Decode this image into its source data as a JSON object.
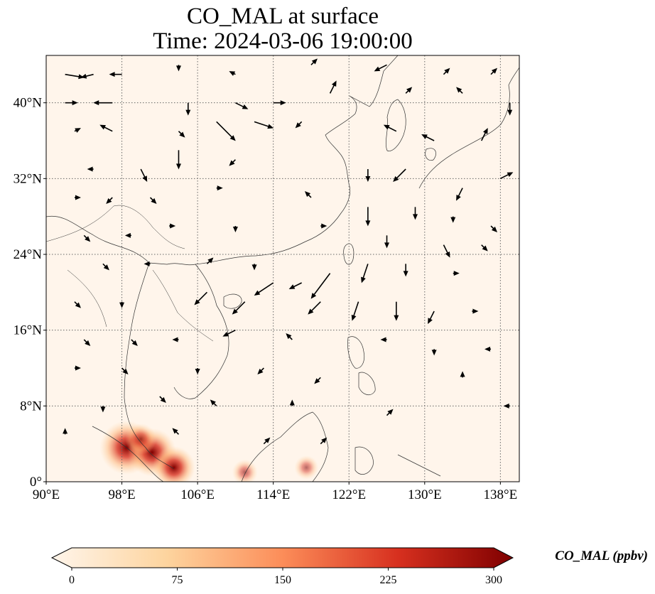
{
  "title_line1": "CO_MAL at surface",
  "title_line2": "Time: 2024-03-06 19:00:00",
  "map": {
    "lon_range": [
      90,
      140
    ],
    "lat_range": [
      0,
      45
    ],
    "lon_ticks": [
      {
        "value": 90,
        "label": "90°E"
      },
      {
        "value": 98,
        "label": "98°E"
      },
      {
        "value": 106,
        "label": "106°E"
      },
      {
        "value": 114,
        "label": "114°E"
      },
      {
        "value": 122,
        "label": "122°E"
      },
      {
        "value": 130,
        "label": "130°E"
      },
      {
        "value": 138,
        "label": "138°E"
      }
    ],
    "lat_ticks": [
      {
        "value": 0,
        "label": "0°"
      },
      {
        "value": 8,
        "label": "8°N"
      },
      {
        "value": 16,
        "label": "16°N"
      },
      {
        "value": 24,
        "label": "24°N"
      },
      {
        "value": 32,
        "label": "32°N"
      },
      {
        "value": 40,
        "label": "40°N"
      }
    ],
    "gridlines": "dotted",
    "background_color": "#fff5eb"
  },
  "colorbar": {
    "label": "CO_MAL (ppbv)",
    "min": 0,
    "max": 300,
    "extend": "both",
    "colormap": "OrRd",
    "colors": [
      "#fff5eb",
      "#fdd49e",
      "#fc8d59",
      "#d7301f",
      "#7f0000"
    ],
    "ticks": [
      {
        "value": 0,
        "label": "0"
      },
      {
        "value": 75,
        "label": "75"
      },
      {
        "value": 150,
        "label": "150"
      },
      {
        "value": 225,
        "label": "225"
      },
      {
        "value": 300,
        "label": "300"
      }
    ]
  },
  "hotspots": [
    {
      "lon": 98.5,
      "lat": 3.6,
      "value": 280
    },
    {
      "lon": 101.2,
      "lat": 3.1,
      "value": 240
    },
    {
      "lon": 103.5,
      "lat": 1.5,
      "value": 200
    },
    {
      "lon": 100.0,
      "lat": 4.5,
      "value": 120
    },
    {
      "lon": 111.0,
      "lat": 1.0,
      "value": 80
    },
    {
      "lon": 117.5,
      "lat": 1.5,
      "value": 70
    }
  ],
  "wind_vectors": [
    {
      "lon": 92,
      "lat": 43,
      "u": 3,
      "v": -0.5
    },
    {
      "lon": 95,
      "lat": 43,
      "u": -2,
      "v": -0.5
    },
    {
      "lon": 98,
      "lat": 43,
      "u": -2,
      "v": 0
    },
    {
      "lon": 104,
      "lat": 44,
      "u": 0,
      "v": -1
    },
    {
      "lon": 110,
      "lat": 43,
      "u": -1,
      "v": 0.5
    },
    {
      "lon": 118,
      "lat": 44,
      "u": 1,
      "v": 1
    },
    {
      "lon": 126,
      "lat": 44,
      "u": -2,
      "v": -1
    },
    {
      "lon": 132,
      "lat": 43,
      "u": 1,
      "v": 1
    },
    {
      "lon": 137,
      "lat": 43,
      "u": 1,
      "v": 1
    },
    {
      "lon": 92,
      "lat": 40,
      "u": 2,
      "v": 0
    },
    {
      "lon": 97,
      "lat": 40,
      "u": -3,
      "v": 0
    },
    {
      "lon": 105,
      "lat": 40,
      "u": 0,
      "v": -2
    },
    {
      "lon": 110,
      "lat": 40,
      "u": 2,
      "v": -1
    },
    {
      "lon": 114,
      "lat": 40,
      "u": 2,
      "v": 0
    },
    {
      "lon": 120,
      "lat": 41,
      "u": 1,
      "v": 2
    },
    {
      "lon": 128,
      "lat": 41,
      "u": 1,
      "v": 1
    },
    {
      "lon": 134,
      "lat": 41,
      "u": -1,
      "v": 1
    },
    {
      "lon": 139,
      "lat": 40,
      "u": 0,
      "v": -2
    },
    {
      "lon": 93,
      "lat": 37,
      "u": 1,
      "v": 0.5
    },
    {
      "lon": 97,
      "lat": 37,
      "u": -2,
      "v": 1
    },
    {
      "lon": 104,
      "lat": 37,
      "u": 1,
      "v": -1
    },
    {
      "lon": 108,
      "lat": 38,
      "u": 3,
      "v": -3
    },
    {
      "lon": 112,
      "lat": 38,
      "u": 3,
      "v": -1
    },
    {
      "lon": 117,
      "lat": 38,
      "u": -1,
      "v": -1
    },
    {
      "lon": 127,
      "lat": 37,
      "u": -2,
      "v": 1
    },
    {
      "lon": 131,
      "lat": 36,
      "u": -2,
      "v": 1
    },
    {
      "lon": 136,
      "lat": 36,
      "u": 1,
      "v": 2
    },
    {
      "lon": 95,
      "lat": 33,
      "u": -1,
      "v": 0
    },
    {
      "lon": 100,
      "lat": 33,
      "u": 1,
      "v": -2
    },
    {
      "lon": 104,
      "lat": 35,
      "u": 0,
      "v": -3
    },
    {
      "lon": 110,
      "lat": 34,
      "u": -1,
      "v": -1
    },
    {
      "lon": 124,
      "lat": 33,
      "u": 0,
      "v": -2
    },
    {
      "lon": 128,
      "lat": 33,
      "u": -2,
      "v": -2
    },
    {
      "lon": 134,
      "lat": 31,
      "u": -1,
      "v": -2
    },
    {
      "lon": 138,
      "lat": 32,
      "u": 2,
      "v": 1
    },
    {
      "lon": 93,
      "lat": 30,
      "u": 1,
      "v": 0
    },
    {
      "lon": 97,
      "lat": 30,
      "u": -1,
      "v": -1
    },
    {
      "lon": 101,
      "lat": 30,
      "u": 1,
      "v": -1
    },
    {
      "lon": 108,
      "lat": 31,
      "u": 1,
      "v": 0
    },
    {
      "lon": 118,
      "lat": 30,
      "u": -1,
      "v": 1
    },
    {
      "lon": 124,
      "lat": 29,
      "u": 0,
      "v": -3
    },
    {
      "lon": 129,
      "lat": 29,
      "u": 0,
      "v": -2
    },
    {
      "lon": 133,
      "lat": 28,
      "u": 0,
      "v": -1
    },
    {
      "lon": 137,
      "lat": 27,
      "u": 1,
      "v": -1
    },
    {
      "lon": 94,
      "lat": 26,
      "u": 1,
      "v": -1
    },
    {
      "lon": 99,
      "lat": 26,
      "u": -1,
      "v": 0
    },
    {
      "lon": 103,
      "lat": 27,
      "u": 1,
      "v": 0
    },
    {
      "lon": 110,
      "lat": 27,
      "u": 0,
      "v": -1
    },
    {
      "lon": 119,
      "lat": 27,
      "u": 1,
      "v": 0
    },
    {
      "lon": 126,
      "lat": 26,
      "u": 0,
      "v": -2
    },
    {
      "lon": 132,
      "lat": 25,
      "u": 1,
      "v": -2
    },
    {
      "lon": 136,
      "lat": 25,
      "u": 1,
      "v": -1
    },
    {
      "lon": 96,
      "lat": 23,
      "u": 1,
      "v": -1
    },
    {
      "lon": 101,
      "lat": 23,
      "u": -1,
      "v": 0
    },
    {
      "lon": 107,
      "lat": 23,
      "u": 1,
      "v": 1
    },
    {
      "lon": 112,
      "lat": 23,
      "u": 0,
      "v": -1
    },
    {
      "lon": 117,
      "lat": 21,
      "u": -2,
      "v": -1
    },
    {
      "lon": 120,
      "lat": 22,
      "u": -3,
      "v": -4
    },
    {
      "lon": 124,
      "lat": 23,
      "u": -1,
      "v": -3
    },
    {
      "lon": 128,
      "lat": 23,
      "u": 0,
      "v": -2
    },
    {
      "lon": 133,
      "lat": 22,
      "u": 1,
      "v": 0
    },
    {
      "lon": 93,
      "lat": 19,
      "u": 1,
      "v": -1
    },
    {
      "lon": 98,
      "lat": 19,
      "u": 0,
      "v": -1
    },
    {
      "lon": 107,
      "lat": 20,
      "u": -2,
      "v": -2
    },
    {
      "lon": 111,
      "lat": 19,
      "u": -2,
      "v": -2
    },
    {
      "lon": 114,
      "lat": 21,
      "u": -3,
      "v": -2
    },
    {
      "lon": 119,
      "lat": 19,
      "u": -2,
      "v": -2
    },
    {
      "lon": 123,
      "lat": 19,
      "u": -1,
      "v": -3
    },
    {
      "lon": 127,
      "lat": 19,
      "u": 0,
      "v": -3
    },
    {
      "lon": 131,
      "lat": 18,
      "u": -1,
      "v": -2
    },
    {
      "lon": 135,
      "lat": 18,
      "u": 1,
      "v": 0
    },
    {
      "lon": 94,
      "lat": 15,
      "u": 1,
      "v": -1
    },
    {
      "lon": 99,
      "lat": 15,
      "u": 1,
      "v": -1
    },
    {
      "lon": 104,
      "lat": 15,
      "u": -1,
      "v": 0
    },
    {
      "lon": 110,
      "lat": 16,
      "u": -2,
      "v": -1
    },
    {
      "lon": 116,
      "lat": 15,
      "u": -1,
      "v": 1
    },
    {
      "lon": 126,
      "lat": 15,
      "u": -1,
      "v": 0
    },
    {
      "lon": 131,
      "lat": 14,
      "u": 0,
      "v": -1
    },
    {
      "lon": 137,
      "lat": 14,
      "u": -1,
      "v": 0
    },
    {
      "lon": 93,
      "lat": 12,
      "u": 1,
      "v": 0
    },
    {
      "lon": 98,
      "lat": 12,
      "u": 1,
      "v": -1
    },
    {
      "lon": 106,
      "lat": 12,
      "u": 0,
      "v": -1
    },
    {
      "lon": 113,
      "lat": 12,
      "u": -1,
      "v": -1
    },
    {
      "lon": 119,
      "lat": 11,
      "u": -1,
      "v": -1
    },
    {
      "lon": 134,
      "lat": 11,
      "u": 0,
      "v": 1
    },
    {
      "lon": 96,
      "lat": 8,
      "u": 0,
      "v": -1
    },
    {
      "lon": 102,
      "lat": 9,
      "u": 1,
      "v": -1
    },
    {
      "lon": 108,
      "lat": 8,
      "u": -1,
      "v": 1
    },
    {
      "lon": 116,
      "lat": 8,
      "u": 0,
      "v": 1
    },
    {
      "lon": 126,
      "lat": 7,
      "u": 1,
      "v": 1
    },
    {
      "lon": 139,
      "lat": 8,
      "u": -1,
      "v": 0
    },
    {
      "lon": 92,
      "lat": 5,
      "u": 0,
      "v": 1
    },
    {
      "lon": 104,
      "lat": 5,
      "u": -1,
      "v": 1
    },
    {
      "lon": 113,
      "lat": 4,
      "u": 1,
      "v": 1
    },
    {
      "lon": 119,
      "lat": 4,
      "u": 1,
      "v": 1
    }
  ]
}
